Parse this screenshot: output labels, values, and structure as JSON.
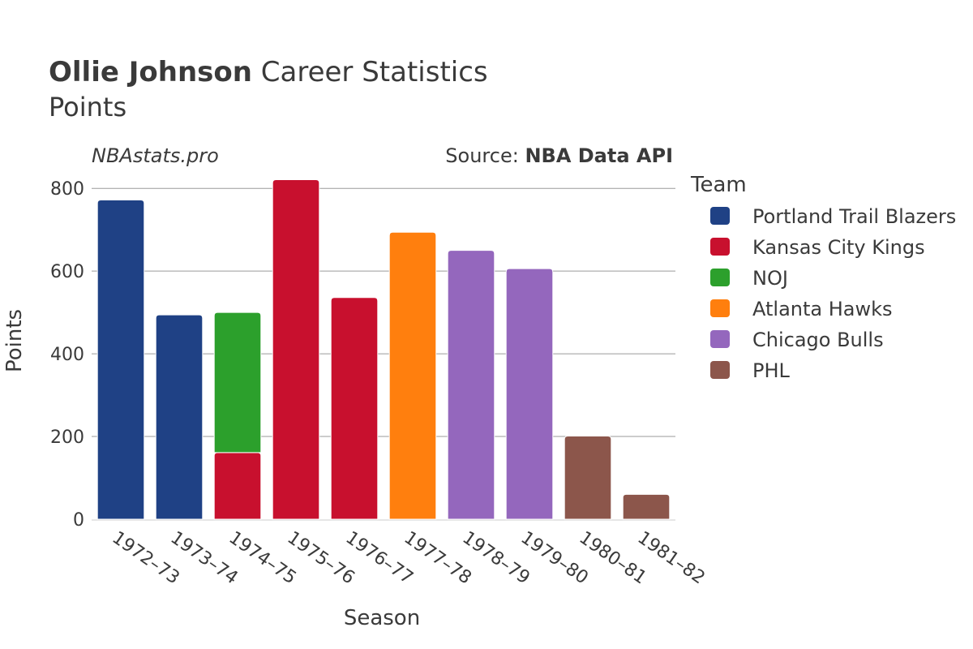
{
  "header": {
    "title_bold": "Ollie Johnson",
    "title_rest": " Career Statistics",
    "subtitle": "Points",
    "brand": "NBAstats.pro",
    "source_prefix": "Source: ",
    "source_name": "NBA Data API"
  },
  "legend": {
    "title": "Team"
  },
  "chart_data": {
    "type": "bar",
    "stacked": true,
    "title": "Ollie Johnson Career Statistics",
    "subtitle": "Points",
    "xlabel": "Season",
    "ylabel": "Points",
    "ylim": [
      0,
      820
    ],
    "yticks": [
      0,
      200,
      400,
      600,
      800
    ],
    "grid": true,
    "legend_position": "right",
    "categories": [
      "1972–73",
      "1973–74",
      "1974–75",
      "1975–76",
      "1976–77",
      "1977–78",
      "1978–79",
      "1979–80",
      "1980–81",
      "1981–82"
    ],
    "series": [
      {
        "name": "Portland Trail Blazers",
        "color": "#1f4185",
        "values": [
          772,
          494,
          null,
          null,
          null,
          null,
          null,
          null,
          null,
          null
        ]
      },
      {
        "name": "Kansas City Kings",
        "color": "#c8102e",
        "values": [
          null,
          null,
          161,
          821,
          536,
          null,
          null,
          null,
          null,
          null
        ]
      },
      {
        "name": "NOJ",
        "color": "#2ca02c",
        "values": [
          null,
          null,
          339,
          null,
          null,
          null,
          null,
          null,
          null,
          null
        ]
      },
      {
        "name": "Atlanta Hawks",
        "color": "#ff7f0e",
        "values": [
          null,
          null,
          null,
          null,
          null,
          694,
          null,
          null,
          null,
          null
        ]
      },
      {
        "name": "Chicago Bulls",
        "color": "#9467bd",
        "values": [
          null,
          null,
          null,
          null,
          null,
          null,
          650,
          606,
          null,
          null
        ]
      },
      {
        "name": "PHL",
        "color": "#8c564b",
        "values": [
          null,
          null,
          null,
          null,
          null,
          null,
          null,
          null,
          201,
          60
        ]
      }
    ]
  }
}
